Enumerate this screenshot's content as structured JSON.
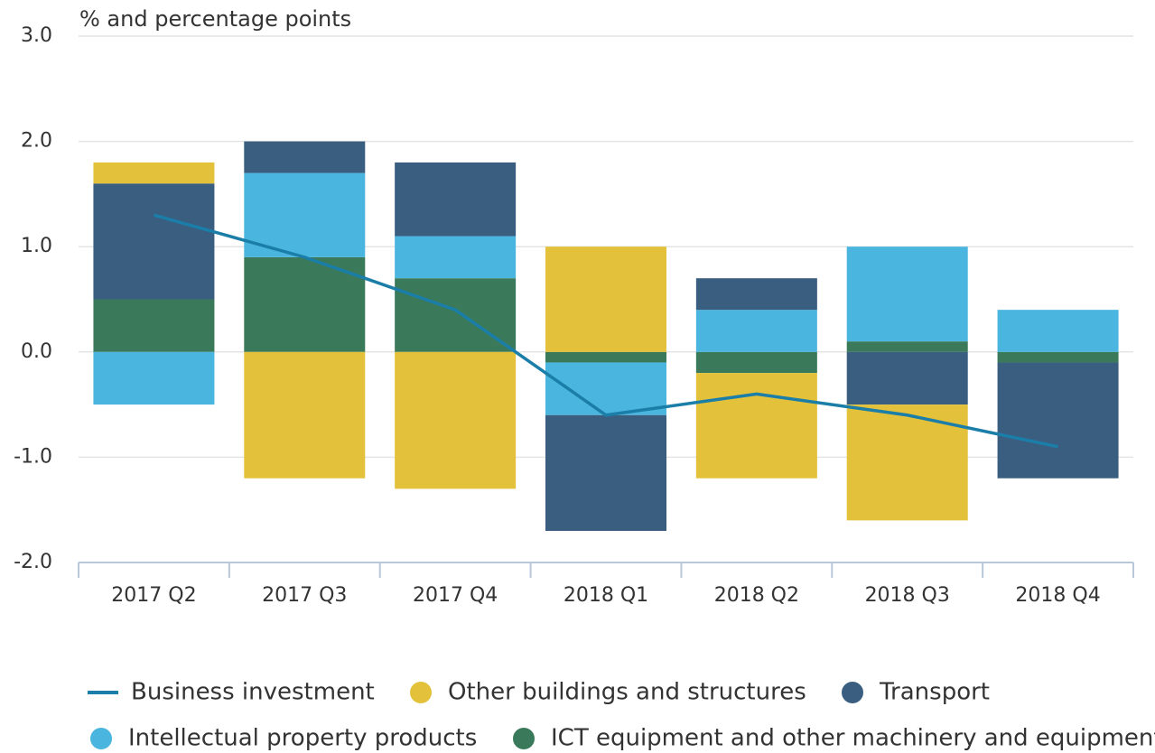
{
  "chart_data": {
    "type": "bar",
    "stacked": true,
    "ylabel": "% and percentage points",
    "categories": [
      "2017 Q2",
      "2017 Q3",
      "2017 Q4",
      "2018 Q1",
      "2018 Q2",
      "2018 Q3",
      "2018 Q4"
    ],
    "series": [
      {
        "name": "Business investment",
        "type": "line",
        "color": "#1a7ea8",
        "values": [
          1.3,
          0.9,
          0.4,
          -0.6,
          -0.4,
          -0.6,
          -0.9
        ]
      },
      {
        "name": "Other buildings and structures",
        "color": "#e3c13a",
        "values": [
          0.2,
          -1.2,
          -1.3,
          1.0,
          -1.0,
          -1.1,
          0
        ]
      },
      {
        "name": "Transport",
        "color": "#3a5e80",
        "values": [
          1.1,
          0.3,
          0.7,
          -1.1,
          0.3,
          -0.5,
          -1.1
        ]
      },
      {
        "name": "Intellectual property products",
        "color": "#4ab5de",
        "values": [
          -0.5,
          0.8,
          0.4,
          -0.5,
          0.4,
          0.9,
          0.4
        ]
      },
      {
        "name": "ICT equipment and other machinery and equipment",
        "color": "#3a7a5a",
        "values": [
          0.5,
          0.9,
          0.7,
          -0.1,
          -0.2,
          0.1,
          -0.1
        ]
      }
    ],
    "ylim": [
      -2,
      3
    ],
    "yticks": [
      {
        "value": -2,
        "label": "-2.0"
      },
      {
        "value": -1,
        "label": "-1.0"
      },
      {
        "value": 0,
        "label": "0.0"
      },
      {
        "value": 1,
        "label": "1.0"
      },
      {
        "value": 2,
        "label": "2.0"
      },
      {
        "value": 3,
        "label": "3.0"
      }
    ],
    "grid": true
  }
}
